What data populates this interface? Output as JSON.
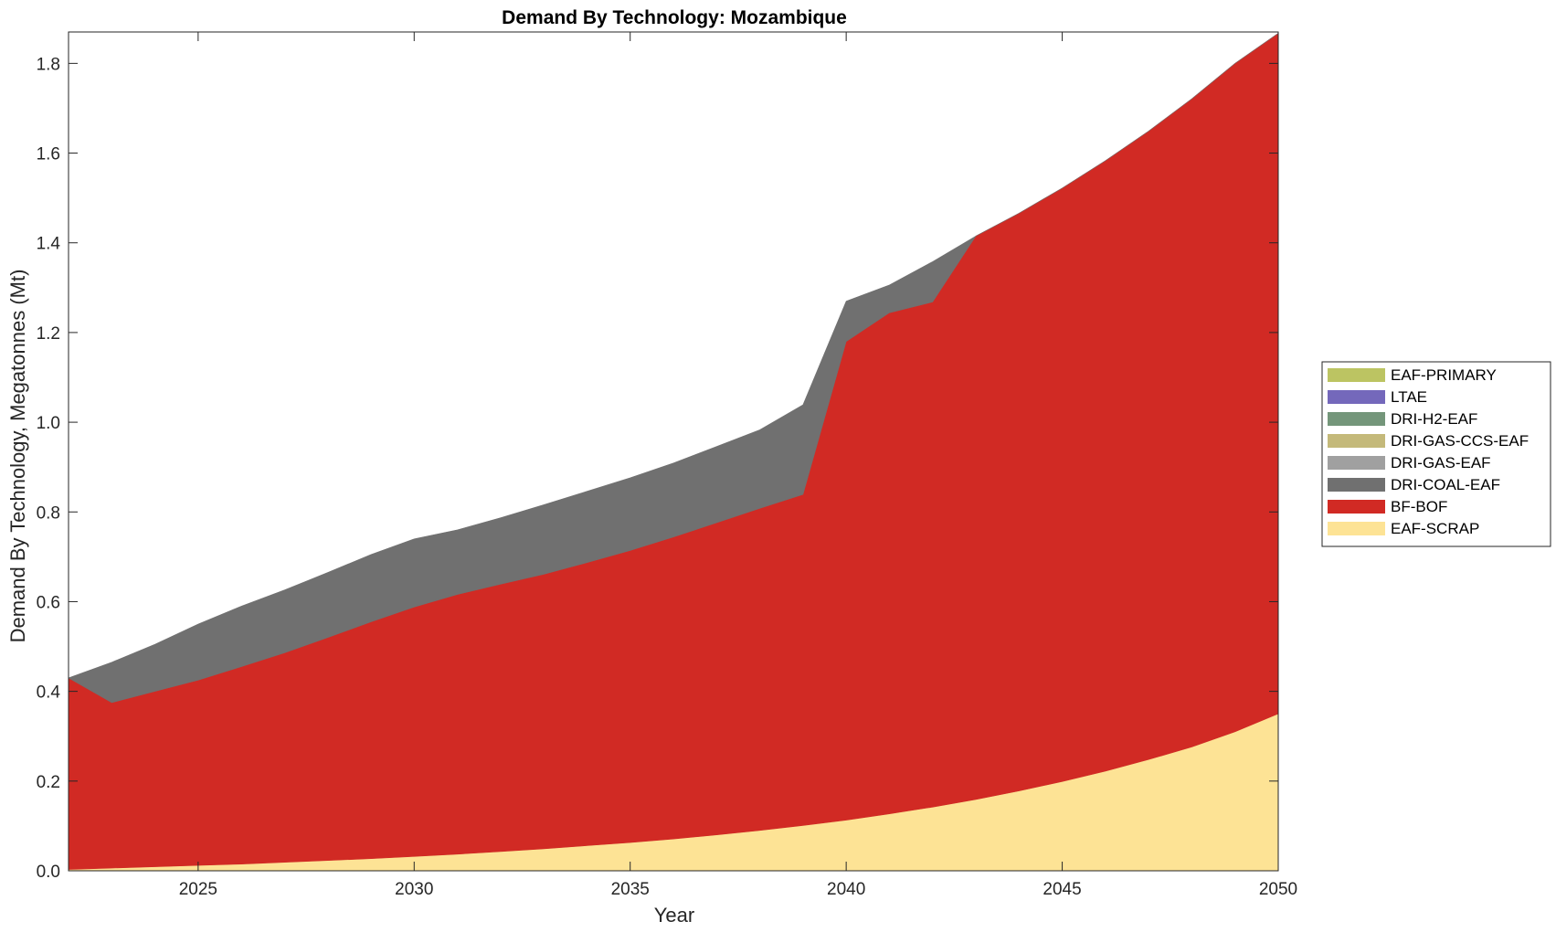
{
  "chart_data": {
    "type": "area",
    "title": "Demand By Technology: Mozambique",
    "xlabel": "Year",
    "ylabel": "Demand By Technology, Megatonnes (Mt)",
    "xlim": [
      2022,
      2050
    ],
    "ylim": [
      0,
      1.87
    ],
    "xticks": [
      2025,
      2030,
      2035,
      2040,
      2045,
      2050
    ],
    "yticks": [
      0.0,
      0.2,
      0.4,
      0.6,
      0.8,
      1.0,
      1.2,
      1.4,
      1.6,
      1.8
    ],
    "ytick_labels": [
      "0.0",
      "0.2",
      "0.4",
      "0.6",
      "0.8",
      "1.0",
      "1.2",
      "1.4",
      "1.6",
      "1.8"
    ],
    "grid": false,
    "stacked": true,
    "legend_position": "right",
    "x": [
      2022,
      2023,
      2024,
      2025,
      2026,
      2027,
      2028,
      2029,
      2030,
      2031,
      2032,
      2033,
      2034,
      2035,
      2036,
      2037,
      2038,
      2039,
      2040,
      2041,
      2042,
      2043,
      2044,
      2045,
      2046,
      2047,
      2048,
      2049,
      2050
    ],
    "series": [
      {
        "name": "EAF-SCRAP",
        "color": "#fde395",
        "values": [
          0.003,
          0.006,
          0.009,
          0.012,
          0.015,
          0.019,
          0.023,
          0.027,
          0.032,
          0.037,
          0.043,
          0.049,
          0.056,
          0.063,
          0.071,
          0.08,
          0.09,
          0.101,
          0.113,
          0.127,
          0.142,
          0.159,
          0.178,
          0.199,
          0.222,
          0.248,
          0.276,
          0.31,
          0.35
        ]
      },
      {
        "name": "BF-BOF",
        "color": "#d12a24",
        "values": [
          0.427,
          0.369,
          0.391,
          0.413,
          0.44,
          0.467,
          0.497,
          0.528,
          0.556,
          0.579,
          0.596,
          0.612,
          0.631,
          0.651,
          0.673,
          0.696,
          0.718,
          0.738,
          1.067,
          1.117,
          1.126,
          1.256,
          1.288,
          1.323,
          1.361,
          1.401,
          1.445,
          1.49,
          1.517
        ]
      },
      {
        "name": "DRI-COAL-EAF",
        "color": "#707070",
        "values": [
          0.0,
          0.09,
          0.105,
          0.125,
          0.135,
          0.14,
          0.145,
          0.15,
          0.152,
          0.144,
          0.148,
          0.155,
          0.159,
          0.162,
          0.165,
          0.17,
          0.175,
          0.2,
          0.09,
          0.062,
          0.09,
          0.0,
          0.0,
          0.0,
          0.0,
          0.0,
          0.0,
          0.0,
          0.0
        ]
      },
      {
        "name": "DRI-GAS-EAF",
        "color": "#a0a0a0",
        "values": [
          0,
          0,
          0,
          0,
          0,
          0,
          0,
          0,
          0,
          0,
          0,
          0,
          0,
          0,
          0,
          0,
          0,
          0,
          0,
          0,
          0,
          0,
          0,
          0,
          0,
          0,
          0,
          0,
          0
        ]
      },
      {
        "name": "DRI-GAS-CCS-EAF",
        "color": "#c4b97a",
        "values": [
          0,
          0,
          0,
          0,
          0,
          0,
          0,
          0,
          0,
          0,
          0,
          0,
          0,
          0,
          0,
          0,
          0,
          0,
          0,
          0,
          0,
          0,
          0,
          0,
          0,
          0,
          0,
          0,
          0
        ]
      },
      {
        "name": "DRI-H2-EAF",
        "color": "#74967a",
        "values": [
          0,
          0,
          0,
          0,
          0,
          0,
          0,
          0,
          0,
          0,
          0,
          0,
          0,
          0,
          0,
          0,
          0,
          0,
          0,
          0,
          0,
          0,
          0,
          0,
          0,
          0,
          0,
          0,
          0
        ]
      },
      {
        "name": "LTAE",
        "color": "#7468bb",
        "values": [
          0,
          0,
          0,
          0,
          0,
          0,
          0,
          0,
          0,
          0,
          0,
          0,
          0,
          0,
          0,
          0,
          0,
          0,
          0,
          0,
          0,
          0,
          0,
          0,
          0,
          0,
          0,
          0,
          0
        ]
      },
      {
        "name": "EAF-PRIMARY",
        "color": "#bcc462",
        "values": [
          0,
          0,
          0,
          0,
          0,
          0,
          0,
          0,
          0,
          0,
          0,
          0,
          0,
          0,
          0,
          0,
          0,
          0,
          0,
          0,
          0,
          0,
          0,
          0,
          0,
          0,
          0,
          0,
          0
        ]
      }
    ]
  }
}
